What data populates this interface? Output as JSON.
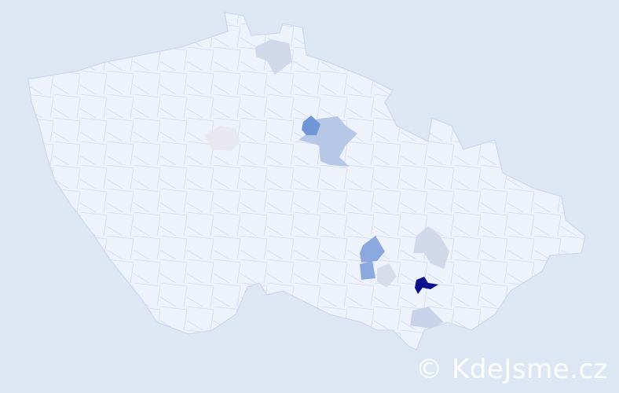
{
  "map": {
    "colors": {
      "background": "#dde6f3",
      "base_region": "#eef2fa",
      "border": "#c8d3ea",
      "level_none": "#e8e8ee",
      "level_low": "#d0d8ea",
      "level_light": "#b7c7e6",
      "level_medium": "#8ba9de",
      "level_strong": "#6f97d8",
      "level_max": "#0b0f8c"
    },
    "highlighted_regions": [
      {
        "name": "",
        "level": "max"
      },
      {
        "name": "",
        "level": "strong"
      },
      {
        "name": "",
        "level": "light"
      },
      {
        "name": "",
        "level": "medium"
      },
      {
        "name": "",
        "level": "none"
      },
      {
        "name": "",
        "level": "low"
      },
      {
        "name": "",
        "level": "low"
      },
      {
        "name": "",
        "level": "low"
      },
      {
        "name": "",
        "level": "low"
      }
    ]
  },
  "watermark": "© KdeJsme.cz"
}
